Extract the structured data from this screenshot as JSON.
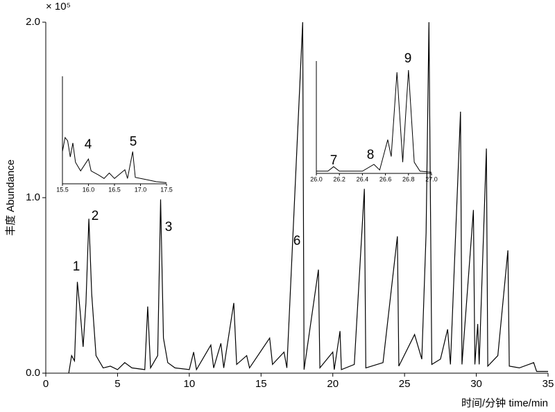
{
  "chart_data": [
    {
      "type": "line",
      "color": "#000000",
      "y_label": "丰度 Abundance",
      "x_label": "时间/分钟  time/min",
      "y_multiplier": "× 10⁵",
      "annotations": [
        "1",
        "2",
        "3",
        "6"
      ],
      "xlim": [
        0,
        35
      ],
      "ylim": [
        0,
        2.0
      ],
      "xticks": [
        0,
        5,
        10,
        15,
        20,
        25,
        30,
        35
      ],
      "yticks": [
        {
          "value": 0,
          "label": "0.0"
        },
        {
          "value": 1,
          "label": "1.0"
        },
        {
          "value": 2,
          "label": "2.0"
        }
      ],
      "x": [
        1.6,
        1.8,
        2.0,
        2.2,
        2.4,
        2.6,
        2.8,
        3.0,
        3.2,
        3.5,
        4.0,
        4.5,
        5.0,
        5.5,
        6.0,
        6.9,
        7.1,
        7.3,
        7.8,
        8.0,
        8.2,
        8.5,
        9.0,
        10.0,
        10.3,
        10.5,
        11.5,
        11.7,
        12.2,
        12.4,
        13.1,
        13.3,
        14.0,
        14.2,
        15.6,
        15.8,
        16.6,
        16.8,
        17.9,
        18.0,
        19.0,
        19.1,
        20.0,
        20.1,
        20.5,
        20.6,
        21.5,
        22.2,
        22.3,
        23.5,
        24.5,
        24.6,
        25.7,
        26.2,
        26.5,
        26.7,
        26.9,
        27.5,
        28.0,
        28.2,
        28.9,
        29.0,
        29.8,
        29.9,
        30.1,
        30.2,
        30.7,
        30.8,
        31.5,
        32.2,
        32.3,
        33.0,
        34.0,
        34.2,
        35.0
      ],
      "values": [
        0,
        0.1,
        0.07,
        0.52,
        0.35,
        0.15,
        0.4,
        0.88,
        0.45,
        0.1,
        0.03,
        0.04,
        0.02,
        0.06,
        0.03,
        0.02,
        0.38,
        0.03,
        0.1,
        0.99,
        0.2,
        0.06,
        0.03,
        0.02,
        0.12,
        0.02,
        0.16,
        0.03,
        0.17,
        0.03,
        0.4,
        0.05,
        0.1,
        0.03,
        0.2,
        0.05,
        0.12,
        0.03,
        2.0,
        0.02,
        0.59,
        0.03,
        0.12,
        0.02,
        0.24,
        0.02,
        0.05,
        1.05,
        0.03,
        0.06,
        0.78,
        0.04,
        0.22,
        0.08,
        0.8,
        2.0,
        0.05,
        0.08,
        0.25,
        0.05,
        1.49,
        0.05,
        0.93,
        0.05,
        0.28,
        0.05,
        1.28,
        0.04,
        0.1,
        0.7,
        0.04,
        0.03,
        0.06,
        0.01,
        0.01
      ]
    },
    {
      "type": "line",
      "color": "#000000",
      "annotations": [
        "4",
        "5"
      ],
      "xlim": [
        15.5,
        17.5
      ],
      "ylim": [
        0,
        1
      ],
      "xticks": [
        15.5,
        {
          "value": 16.0,
          "label": "16.0"
        },
        16.5,
        {
          "value": 17.0,
          "label": "17.0"
        },
        17.5
      ],
      "x": [
        15.5,
        15.55,
        15.6,
        15.65,
        15.7,
        15.75,
        15.85,
        16.0,
        16.05,
        16.2,
        16.3,
        16.4,
        16.5,
        16.7,
        16.75,
        16.85,
        16.9,
        17.1,
        17.3,
        17.5
      ],
      "values": [
        0.3,
        0.43,
        0.4,
        0.25,
        0.38,
        0.2,
        0.12,
        0.23,
        0.12,
        0.08,
        0.05,
        0.1,
        0.05,
        0.13,
        0.05,
        0.3,
        0.06,
        0.04,
        0.02,
        0.01
      ]
    },
    {
      "type": "line",
      "color": "#000000",
      "annotations": [
        "7",
        "8",
        "9"
      ],
      "xlim": [
        26.0,
        27.0
      ],
      "ylim": [
        0,
        1
      ],
      "xticks": [
        {
          "value": 26.0,
          "label": "26.0"
        },
        26.2,
        26.4,
        26.6,
        26.8,
        {
          "value": 27.0,
          "label": "27.0"
        }
      ],
      "x": [
        26.0,
        26.1,
        26.15,
        26.2,
        26.4,
        26.5,
        26.55,
        26.62,
        26.65,
        26.7,
        26.75,
        26.8,
        26.85,
        26.9,
        27.0
      ],
      "values": [
        0.02,
        0.02,
        0.06,
        0.02,
        0.02,
        0.08,
        0.03,
        0.3,
        0.15,
        0.9,
        0.1,
        0.92,
        0.1,
        0.02,
        0.01
      ]
    }
  ]
}
